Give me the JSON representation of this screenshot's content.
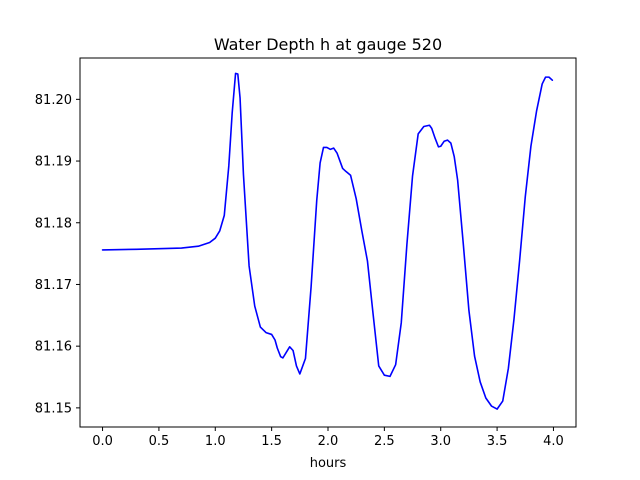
{
  "chart_data": {
    "type": "line",
    "title": "Water Depth h at gauge 520",
    "xlabel": "hours",
    "ylabel": "",
    "xlim": [
      -0.2,
      4.2
    ],
    "ylim": [
      81.1469,
      81.2067
    ],
    "x_ticks": [
      0.0,
      0.5,
      1.0,
      1.5,
      2.0,
      2.5,
      3.0,
      3.5,
      4.0
    ],
    "x_tick_labels": [
      "0.0",
      "0.5",
      "1.0",
      "1.5",
      "2.0",
      "2.5",
      "3.0",
      "3.5",
      "4.0"
    ],
    "y_ticks": [
      81.15,
      81.16,
      81.17,
      81.18,
      81.19,
      81.2
    ],
    "y_tick_labels": [
      "81.15",
      "81.16",
      "81.17",
      "81.18",
      "81.19",
      "81.20"
    ],
    "grid": false,
    "series": [
      {
        "color": "#0000ff",
        "x": [
          0.0,
          0.3,
          0.5,
          0.7,
          0.85,
          0.95,
          1.0,
          1.04,
          1.08,
          1.12,
          1.15,
          1.18,
          1.2,
          1.22,
          1.25,
          1.3,
          1.35,
          1.4,
          1.45,
          1.5,
          1.53,
          1.55,
          1.58,
          1.6,
          1.63,
          1.66,
          1.69,
          1.72,
          1.75,
          1.8,
          1.85,
          1.9,
          1.93,
          1.96,
          1.99,
          2.02,
          2.05,
          2.08,
          2.1,
          2.13,
          2.16,
          2.2,
          2.25,
          2.3,
          2.35,
          2.4,
          2.45,
          2.5,
          2.55,
          2.6,
          2.65,
          2.7,
          2.75,
          2.8,
          2.85,
          2.9,
          2.92,
          2.95,
          2.98,
          3.0,
          3.03,
          3.06,
          3.09,
          3.12,
          3.15,
          3.2,
          3.25,
          3.3,
          3.35,
          3.4,
          3.45,
          3.5,
          3.55,
          3.6,
          3.65,
          3.7,
          3.75,
          3.8,
          3.85,
          3.9,
          3.93,
          3.96,
          3.99
        ],
        "y": [
          81.1756,
          81.1757,
          81.1758,
          81.1759,
          81.1762,
          81.1768,
          81.1775,
          81.1787,
          81.1812,
          81.1892,
          81.1978,
          81.2042,
          81.2041,
          81.2002,
          81.1878,
          81.173,
          81.1665,
          81.1631,
          81.1622,
          81.1619,
          81.161,
          81.1597,
          81.1583,
          81.1581,
          81.159,
          81.1599,
          81.1593,
          81.1568,
          81.1555,
          81.158,
          81.1696,
          81.1836,
          81.1897,
          81.1922,
          81.1922,
          81.1919,
          81.1921,
          81.1913,
          81.1903,
          81.1888,
          81.1883,
          81.1877,
          81.1839,
          81.1787,
          81.1738,
          81.1652,
          81.1568,
          81.1553,
          81.1551,
          81.157,
          81.1638,
          81.1765,
          81.1876,
          81.1944,
          81.1956,
          81.1958,
          81.1953,
          81.1937,
          81.1923,
          81.1924,
          81.1932,
          81.1934,
          81.1929,
          81.1907,
          81.1869,
          81.1766,
          81.1658,
          81.1584,
          81.1542,
          81.1516,
          81.1503,
          81.1498,
          81.1511,
          81.1564,
          81.1644,
          81.1739,
          81.1842,
          81.1924,
          81.1981,
          81.2025,
          81.2036,
          81.2036,
          81.2031
        ]
      }
    ]
  }
}
